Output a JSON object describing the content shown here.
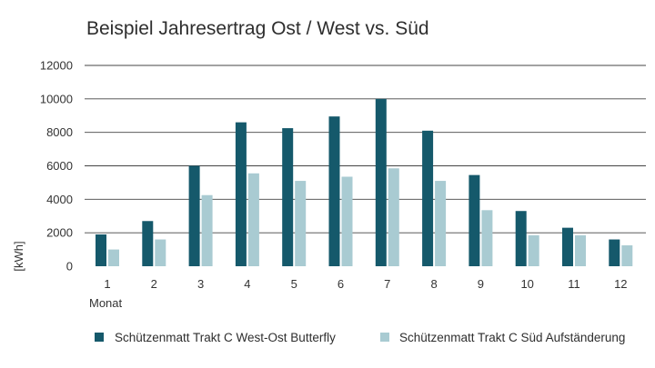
{
  "chart_data": {
    "type": "bar",
    "title": "Beispiel Jahresertrag Ost / West vs. Süd",
    "xlabel": "Monat",
    "ylabel": "[kWh]",
    "categories": [
      "1",
      "2",
      "3",
      "4",
      "5",
      "6",
      "7",
      "8",
      "9",
      "10",
      "11",
      "12"
    ],
    "ylim": [
      0,
      12000
    ],
    "yticks": [
      0,
      2000,
      4000,
      6000,
      8000,
      10000,
      12000
    ],
    "ytick_labels": [
      "0",
      "2000",
      "4000",
      "6000",
      "8000",
      "10000",
      "12000"
    ],
    "grid": true,
    "legend_position": "bottom",
    "series": [
      {
        "name": "Schützenmatt Trakt C West-Ost Butterfly",
        "color": "#15596b",
        "values": [
          1900,
          2700,
          6000,
          8600,
          8250,
          8950,
          10000,
          8100,
          5450,
          3300,
          2300,
          1600
        ]
      },
      {
        "name": "Schützenmatt Trakt C Süd Aufständerung",
        "color": "#a9cbd2",
        "values": [
          1000,
          1600,
          4250,
          5550,
          5100,
          5350,
          5850,
          5100,
          3350,
          1850,
          1850,
          1250
        ]
      }
    ]
  }
}
